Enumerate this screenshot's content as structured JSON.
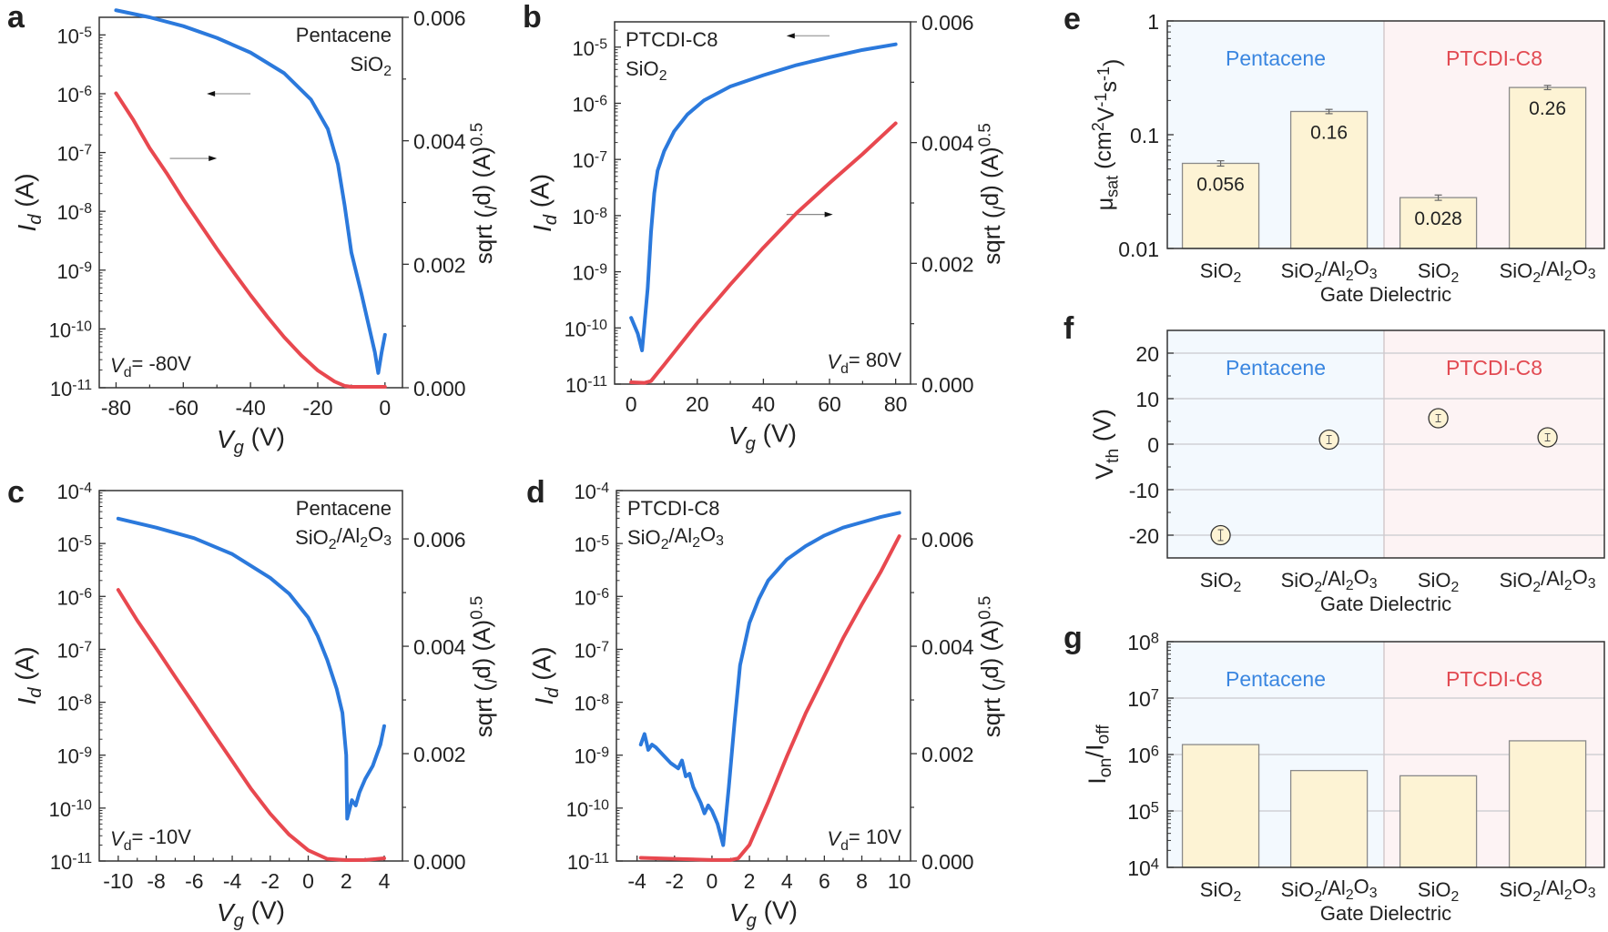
{
  "colors": {
    "blue": "#2b79dc",
    "red": "#e8484f",
    "bar_fill": "#fdf3d4",
    "bar_stroke": "#8a8a8a",
    "bg_pentacene": "#f3f9fe",
    "bg_ptcdi": "#fdf3f4",
    "grid": "#c9c9ce",
    "pentacene_text": "#3a86e0",
    "ptcdi_text": "#e24a52"
  },
  "chart_data": [
    {
      "id": "a",
      "panel_label": "a",
      "type": "line",
      "annotation": [
        "Pentacene",
        "SiO",
        "2"
      ],
      "vd_label": [
        "V",
        "d",
        "= -80V"
      ],
      "xlabel": [
        "V",
        "g",
        " (V)"
      ],
      "ylabel": [
        "I",
        "d",
        " (A)"
      ],
      "y2label": [
        "sqrt (",
        "I",
        "d",
        ") (A)",
        "0.5"
      ],
      "xlim": [
        -85,
        5.2
      ],
      "xticks": [
        -80,
        -60,
        -40,
        -20,
        0
      ],
      "xtick_labels": [
        "-80",
        "-60",
        "-40",
        "-20",
        "0"
      ],
      "ylim_log": [
        -11,
        -4.7
      ],
      "yticks_exp": [
        -11,
        -10,
        -9,
        -8,
        -7,
        -6,
        -5
      ],
      "y2lim": [
        0,
        0.006
      ],
      "y2ticks": [
        0,
        0.002,
        0.004,
        0.006
      ],
      "y2tick_labels": [
        "0.000",
        "0.002",
        "0.004",
        "0.006"
      ],
      "arrow_left": {
        "x": [
          -40,
          -53
        ],
        "y_log": -6.0
      },
      "arrow_right": {
        "x": [
          -64,
          -50
        ],
        "y_log": -7.1
      },
      "series": [
        {
          "name": "Id (log, left axis)",
          "axis": "left",
          "color": "blue",
          "x": [
            -80,
            -70,
            -60,
            -50,
            -40,
            -30,
            -22,
            -17,
            -14,
            -12,
            -10,
            -7,
            -5,
            -3,
            -2,
            -1,
            0
          ],
          "y_log": [
            -4.58,
            -4.7,
            -4.85,
            -5.05,
            -5.3,
            -5.65,
            -6.1,
            -6.6,
            -7.2,
            -7.9,
            -8.7,
            -9.4,
            -9.9,
            -10.4,
            -10.75,
            -10.4,
            -10.1
          ]
        },
        {
          "name": "sqrt(Id) (right axis)",
          "axis": "right",
          "color": "red",
          "x": [
            -80,
            -75,
            -70,
            -65,
            -60,
            -55,
            -50,
            -45,
            -40,
            -35,
            -30,
            -25,
            -20,
            -15,
            -12,
            -10,
            -5,
            0
          ],
          "y": [
            0.00477,
            0.00435,
            0.00388,
            0.00348,
            0.00305,
            0.00265,
            0.00225,
            0.00187,
            0.0015,
            0.00115,
            0.00082,
            0.00053,
            0.00028,
            0.0001,
            3e-05,
            0.0,
            0.0,
            0.0
          ]
        }
      ]
    },
    {
      "id": "b",
      "panel_label": "b",
      "type": "line",
      "annotation": [
        "PTCDI-C8",
        "SiO",
        "2"
      ],
      "vd_label": [
        "V",
        "d",
        "= 80V"
      ],
      "xlabel": [
        "V",
        "g",
        " (V)"
      ],
      "ylabel": [
        "I",
        "d",
        " (A)"
      ],
      "y2label": [
        "sqrt (",
        "I",
        "d",
        ") (A)",
        "0.5"
      ],
      "xlim": [
        -5,
        84.5
      ],
      "xticks": [
        0,
        20,
        40,
        60,
        80
      ],
      "xtick_labels": [
        "0",
        "20",
        "40",
        "60",
        "80"
      ],
      "ylim_log": [
        -11,
        -4.55
      ],
      "yticks_exp": [
        -11,
        -10,
        -9,
        -8,
        -7,
        -6,
        -5
      ],
      "y2lim": [
        0,
        0.006
      ],
      "y2ticks": [
        0,
        0.002,
        0.004,
        0.006
      ],
      "y2tick_labels": [
        "0.000",
        "0.002",
        "0.004",
        "0.006"
      ],
      "arrow_left": {
        "x": [
          60,
          47
        ],
        "y_log": -4.8
      },
      "arrow_right": {
        "x": [
          47,
          61
        ],
        "y_log": -7.98
      },
      "series": [
        {
          "name": "Id (log, left axis)",
          "axis": "left",
          "color": "blue",
          "x": [
            0,
            2,
            3.3,
            5,
            6,
            7,
            8,
            10,
            13,
            17,
            22,
            30,
            40,
            50,
            60,
            70,
            80
          ],
          "y_log": [
            -9.82,
            -10.1,
            -10.4,
            -9.3,
            -8.3,
            -7.6,
            -7.2,
            -6.85,
            -6.5,
            -6.2,
            -5.95,
            -5.7,
            -5.5,
            -5.32,
            -5.18,
            -5.05,
            -4.95
          ]
        },
        {
          "name": "sqrt(Id) (right axis)",
          "axis": "right",
          "color": "red",
          "x": [
            0,
            4,
            6,
            10,
            20,
            30,
            40,
            50,
            60,
            70,
            80
          ],
          "y": [
            3e-05,
            2e-05,
            5e-05,
            0.00032,
            0.00101,
            0.00165,
            0.00226,
            0.00283,
            0.00333,
            0.00381,
            0.00432
          ]
        }
      ]
    },
    {
      "id": "c",
      "panel_label": "c",
      "type": "line",
      "annotation": [
        "Pentacene",
        "SiO",
        "2",
        "/Al",
        "2",
        "O",
        "3"
      ],
      "vd_label": [
        "V",
        "d",
        "= -10V"
      ],
      "xlabel": [
        "V",
        "g",
        " (V)"
      ],
      "ylabel": [
        "I",
        "d",
        " (A)"
      ],
      "y2label": [
        "sqrt (",
        "I",
        "d",
        ") (A)",
        "0.5"
      ],
      "xlim": [
        -11,
        4.96
      ],
      "xticks": [
        -10,
        -8,
        -6,
        -4,
        -2,
        0,
        2,
        4
      ],
      "xtick_labels": [
        "-10",
        "-8",
        "-6",
        "-4",
        "-2",
        "0",
        "2",
        "4"
      ],
      "ylim_log": [
        -11,
        -4
      ],
      "yticks_exp": [
        -11,
        -10,
        -9,
        -8,
        -7,
        -6,
        -5,
        -4
      ],
      "y2lim": [
        0,
        0.0069
      ],
      "y2ticks": [
        0,
        0.002,
        0.004,
        0.006
      ],
      "y2tick_labels": [
        "0.000",
        "0.002",
        "0.004",
        "0.006"
      ],
      "series": [
        {
          "name": "Id (log, left axis)",
          "axis": "left",
          "color": "blue",
          "x": [
            -10,
            -8,
            -6,
            -4,
            -2,
            -1,
            0,
            0.5,
            1,
            1.5,
            1.8,
            2.0,
            2.05,
            2.3,
            2.5,
            2.7,
            3.0,
            3.4,
            3.8,
            4
          ],
          "y_log": [
            -4.53,
            -4.7,
            -4.9,
            -5.2,
            -5.65,
            -5.95,
            -6.4,
            -6.75,
            -7.2,
            -7.75,
            -8.2,
            -9.0,
            -10.2,
            -9.85,
            -9.95,
            -9.7,
            -9.45,
            -9.2,
            -8.8,
            -8.45
          ]
        },
        {
          "name": "sqrt(Id) (right axis)",
          "axis": "right",
          "color": "red",
          "x": [
            -10,
            -9,
            -8,
            -7,
            -6,
            -5,
            -4,
            -3,
            -2,
            -1,
            0,
            1,
            2,
            3,
            4
          ],
          "y": [
            0.00505,
            0.00448,
            0.00396,
            0.00343,
            0.00291,
            0.00238,
            0.00186,
            0.00134,
            0.00088,
            0.00049,
            0.0002,
            4e-05,
            0.0,
            2e-05,
            5e-05
          ]
        }
      ]
    },
    {
      "id": "d",
      "panel_label": "d",
      "type": "line",
      "annotation": [
        "PTCDI-C8",
        "SiO",
        "2",
        "/Al",
        "2",
        "O",
        "3"
      ],
      "vd_label": [
        "V",
        "d",
        "= 10V"
      ],
      "xlabel": [
        "V",
        "g",
        " (V)"
      ],
      "ylabel": [
        "I",
        "d",
        " (A)"
      ],
      "y2label": [
        "sqrt (",
        "I",
        "d",
        ") (A)",
        "0.5"
      ],
      "xlim": [
        -5.1,
        10.6
      ],
      "xticks": [
        -4,
        -2,
        0,
        2,
        4,
        6,
        8,
        10
      ],
      "xtick_labels": [
        "-4",
        "-2",
        "0",
        "2",
        "4",
        "6",
        "8",
        "10"
      ],
      "ylim_log": [
        -11,
        -4
      ],
      "yticks_exp": [
        -11,
        -10,
        -9,
        -8,
        -7,
        -6,
        -5,
        -4
      ],
      "y2lim": [
        0,
        0.0069
      ],
      "y2ticks": [
        0,
        0.002,
        0.004,
        0.006
      ],
      "y2tick_labels": [
        "0.000",
        "0.002",
        "0.004",
        "0.006"
      ],
      "series": [
        {
          "name": "Id (log, left axis)",
          "axis": "left",
          "color": "blue",
          "x": [
            -3.8,
            -3.6,
            -3.4,
            -3.2,
            -3.0,
            -2.6,
            -2.2,
            -1.8,
            -1.6,
            -1.4,
            -1.2,
            -1.0,
            -0.8,
            -0.6,
            -0.4,
            -0.2,
            0,
            0.3,
            0.6,
            0.9,
            1.2,
            1.5,
            2.0,
            2.5,
            3,
            4,
            5,
            6,
            7,
            8,
            9,
            10
          ],
          "y_log": [
            -8.8,
            -8.6,
            -8.9,
            -8.8,
            -8.85,
            -9.0,
            -9.15,
            -9.25,
            -9.1,
            -9.4,
            -9.35,
            -9.6,
            -9.75,
            -9.9,
            -10.1,
            -9.95,
            -10.05,
            -10.3,
            -10.7,
            -9.6,
            -8.4,
            -7.3,
            -6.5,
            -6.05,
            -5.7,
            -5.3,
            -5.05,
            -4.85,
            -4.7,
            -4.6,
            -4.5,
            -4.42
          ]
        },
        {
          "name": "sqrt(Id) (right axis)",
          "axis": "right",
          "color": "red",
          "x": [
            -3.8,
            -2,
            0,
            1,
            1.4,
            2,
            3,
            4,
            5,
            6,
            7,
            8,
            9,
            10
          ],
          "y": [
            6e-05,
            4e-05,
            2e-05,
            2e-05,
            5e-05,
            0.0003,
            0.0011,
            0.00195,
            0.00275,
            0.00345,
            0.00415,
            0.00478,
            0.00538,
            0.00605
          ]
        }
      ]
    },
    {
      "id": "e",
      "panel_label": "e",
      "type": "bar",
      "log_y": true,
      "ylim": [
        0.01,
        1
      ],
      "yticks": [
        0.01,
        0.1,
        1
      ],
      "ytick_labels": [
        "0.01",
        "0.1",
        "1"
      ],
      "ylabel": [
        "μ",
        "sat",
        " (cm",
        "2",
        "V",
        "-1",
        "s",
        "-1",
        ")"
      ],
      "xlabel": "Gate Dielectric",
      "groups": [
        "Pentacene",
        "PTCDI-C8"
      ],
      "categories": [
        [
          "SiO",
          "2"
        ],
        [
          "SiO",
          "2",
          "/Al",
          "2",
          "O",
          "3"
        ],
        [
          "SiO",
          "2"
        ],
        [
          "SiO",
          "2",
          "/Al",
          "2",
          "O",
          "3"
        ]
      ],
      "values": [
        0.056,
        0.16,
        0.028,
        0.26
      ],
      "errors": [
        0.003,
        0.007,
        0.0015,
        0.011
      ],
      "value_labels": [
        "0.056",
        "0.16",
        "0.028",
        "0.26"
      ]
    },
    {
      "id": "f",
      "panel_label": "f",
      "type": "scatter",
      "ylim": [
        -25,
        25
      ],
      "yticks": [
        -20,
        -10,
        0,
        10,
        20
      ],
      "ytick_labels": [
        "-20",
        "-10",
        "0",
        "10",
        "20"
      ],
      "ylabel": [
        "V",
        "th",
        " (V)"
      ],
      "xlabel": "Gate Dielectric",
      "groups": [
        "Pentacene",
        "PTCDI-C8"
      ],
      "categories": [
        [
          "SiO",
          "2"
        ],
        [
          "SiO",
          "2",
          "/Al",
          "2",
          "O",
          "3"
        ],
        [
          "SiO",
          "2"
        ],
        [
          "SiO",
          "2",
          "/Al",
          "2",
          "O",
          "3"
        ]
      ],
      "values": [
        -20.0,
        1.0,
        5.7,
        1.5
      ],
      "errors": [
        1.2,
        0.9,
        0.8,
        0.8
      ]
    },
    {
      "id": "g",
      "panel_label": "g",
      "type": "bar",
      "log_y": true,
      "ylim": [
        10000,
        100000000
      ],
      "yticks_exp": [
        4,
        5,
        6,
        7,
        8
      ],
      "ylabel": [
        "I",
        "on",
        "/I",
        "off"
      ],
      "xlabel": "Gate Dielectric",
      "groups": [
        "Pentacene",
        "PTCDI-C8"
      ],
      "categories": [
        [
          "SiO",
          "2"
        ],
        [
          "SiO",
          "2",
          "/Al",
          "2",
          "O",
          "3"
        ],
        [
          "SiO",
          "2"
        ],
        [
          "SiO",
          "2",
          "/Al",
          "2",
          "O",
          "3"
        ]
      ],
      "values": [
        1500000,
        520000,
        420000,
        1750000
      ]
    }
  ]
}
